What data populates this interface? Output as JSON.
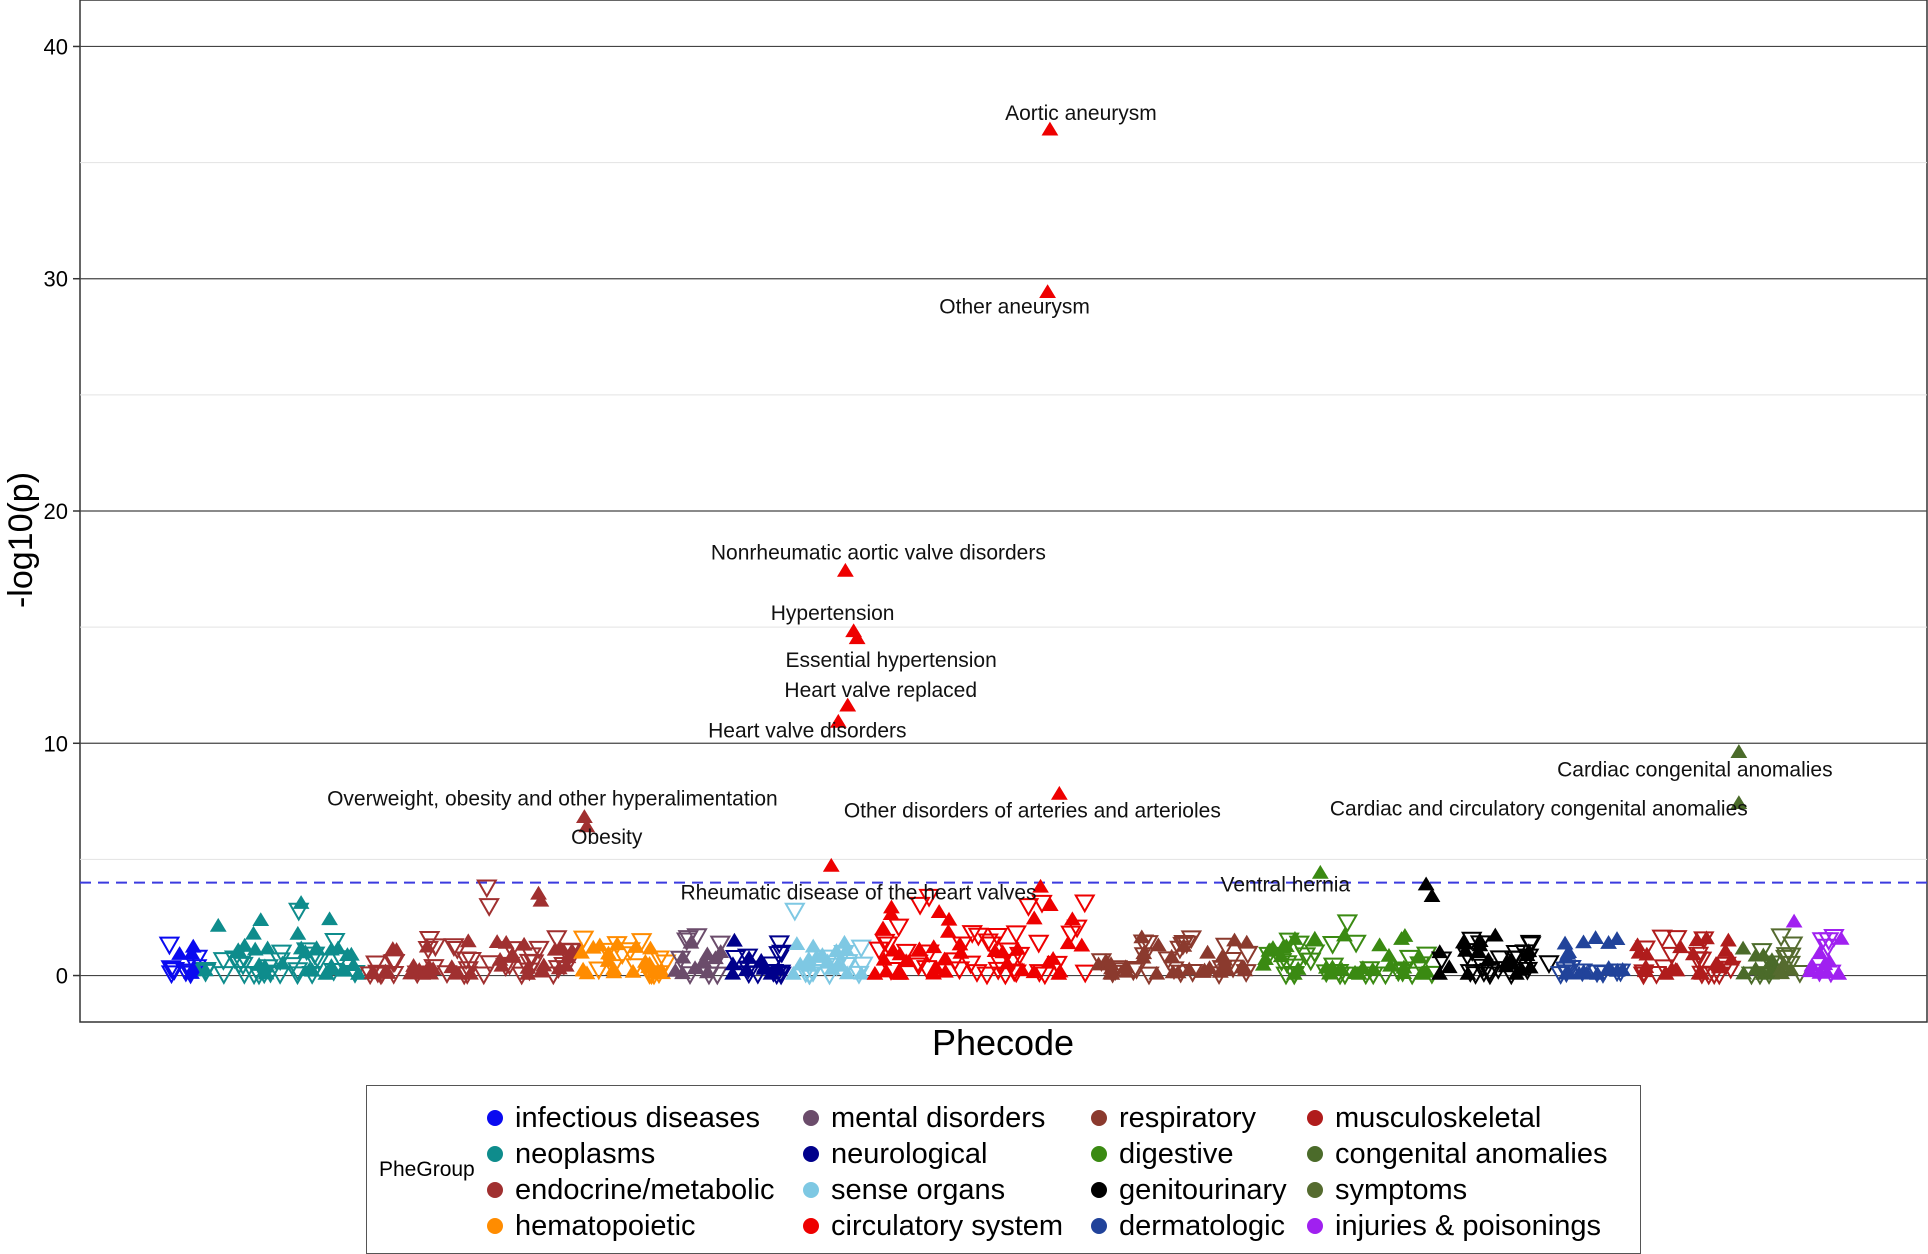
{
  "chart_data": {
    "type": "scatter",
    "title": "",
    "xlabel": "Phecode",
    "ylabel": "-log10(p)",
    "ylim": [
      -2,
      42
    ],
    "y_ticks": [
      0,
      10,
      20,
      30,
      40
    ],
    "x_ticks": [],
    "threshold": 4,
    "marker_note": "filled triangle up = positive association, open triangle down = negative association",
    "legend_title": "PheGroup",
    "groups": [
      {
        "name": "infectious diseases",
        "color": "#0a0af0",
        "x_range": [
          0,
          35
        ]
      },
      {
        "name": "neoplasms",
        "color": "#0e8c8c",
        "x_range": [
          35,
          175
        ]
      },
      {
        "name": "endocrine/metabolic",
        "color": "#a03030",
        "x_range": [
          175,
          355
        ]
      },
      {
        "name": "hematopoietic",
        "color": "#ff8c00",
        "x_range": [
          355,
          435
        ]
      },
      {
        "name": "mental disorders",
        "color": "#6b4c6b",
        "x_range": [
          435,
          480
        ]
      },
      {
        "name": "neurological",
        "color": "#00008b",
        "x_range": [
          480,
          535
        ]
      },
      {
        "name": "sense organs",
        "color": "#7ec8e3",
        "x_range": [
          535,
          605
        ]
      },
      {
        "name": "circulatory system",
        "color": "#ee0000",
        "x_range": [
          605,
          795
        ]
      },
      {
        "name": "respiratory",
        "color": "#8b3a2e",
        "x_range": [
          795,
          935
        ]
      },
      {
        "name": "digestive",
        "color": "#3a8a12",
        "x_range": [
          935,
          1085
        ]
      },
      {
        "name": "genitourinary",
        "color": "#000000",
        "x_range": [
          1085,
          1185
        ]
      },
      {
        "name": "dermatologic",
        "color": "#21439a",
        "x_range": [
          1185,
          1250
        ]
      },
      {
        "name": "musculoskeletal",
        "color": "#b01c1c",
        "x_range": [
          1250,
          1340
        ]
      },
      {
        "name": "congenital anomalies",
        "color": "#4b6b2a",
        "x_range": [
          1340,
          1375
        ]
      },
      {
        "name": "symptoms",
        "color": "#556b2f",
        "x_range": [
          1375,
          1400
        ]
      },
      {
        "name": "injuries & poisonings",
        "color": "#a020f0",
        "x_range": [
          1400,
          1435
        ]
      }
    ],
    "labeled_points": [
      {
        "label": "Aortic aneurysm",
        "x": 757,
        "y": 36.4,
        "group": 7,
        "dir": "up"
      },
      {
        "label": "Other aneurysm",
        "x": 755,
        "y": 29.4,
        "group": 7,
        "dir": "up"
      },
      {
        "label": "Nonrheumatic aortic valve disorders",
        "x": 583,
        "y": 17.4,
        "group": 7,
        "dir": "up"
      },
      {
        "label": "Hypertension",
        "x": 590,
        "y": 14.8,
        "group": 7,
        "dir": "up"
      },
      {
        "label": "Essential hypertension",
        "x": 593,
        "y": 14.5,
        "group": 7,
        "dir": "up"
      },
      {
        "label": "Heart valve replaced",
        "x": 585,
        "y": 11.6,
        "group": 7,
        "dir": "up"
      },
      {
        "label": "Heart valve disorders",
        "x": 577,
        "y": 10.9,
        "group": 7,
        "dir": "up"
      },
      {
        "label": "Overweight, obesity and other hyperalimentation",
        "x": 361,
        "y": 6.8,
        "group": 2,
        "dir": "up"
      },
      {
        "label": "Obesity",
        "x": 363,
        "y": 6.4,
        "group": 2,
        "dir": "up"
      },
      {
        "label": "Other disorders of arteries and arterioles",
        "x": 765,
        "y": 7.8,
        "group": 7,
        "dir": "up"
      },
      {
        "label": "Rheumatic disease of the heart valves",
        "x": 749,
        "y": 3.8,
        "group": 7,
        "dir": "up"
      },
      {
        "label": "Cardiac congenital anomalies",
        "x": 1343,
        "y": 9.6,
        "group": 13,
        "dir": "up"
      },
      {
        "label": "Cardiac and circulatory congenital anomalies",
        "x": 1343,
        "y": 7.4,
        "group": 13,
        "dir": "up"
      },
      {
        "label": "Ventral hernia",
        "x": 987,
        "y": 4.4,
        "group": 9,
        "dir": "up"
      }
    ],
    "extra_points": [
      {
        "x": 571,
        "y": 4.7,
        "group": 7,
        "dir": "up"
      },
      {
        "x": 1077,
        "y": 3.9,
        "group": 10,
        "dir": "up"
      },
      {
        "x": 1082,
        "y": 3.4,
        "group": 10,
        "dir": "up"
      },
      {
        "x": 322,
        "y": 3.5,
        "group": 2,
        "dir": "up"
      },
      {
        "x": 324,
        "y": 3.2,
        "group": 2,
        "dir": "up"
      },
      {
        "x": 278,
        "y": 3.8,
        "group": 2,
        "dir": "down"
      },
      {
        "x": 280,
        "y": 3.0,
        "group": 2,
        "dir": "down"
      },
      {
        "x": 540,
        "y": 2.8,
        "group": 6,
        "dir": "down"
      },
      {
        "x": 1390,
        "y": 2.3,
        "group": 15,
        "dir": "up"
      },
      {
        "x": 1010,
        "y": 2.3,
        "group": 9,
        "dir": "down"
      },
      {
        "x": 120,
        "y": 3.1,
        "group": 1,
        "dir": "up"
      },
      {
        "x": 118,
        "y": 2.8,
        "group": 1,
        "dir": "down"
      }
    ]
  }
}
